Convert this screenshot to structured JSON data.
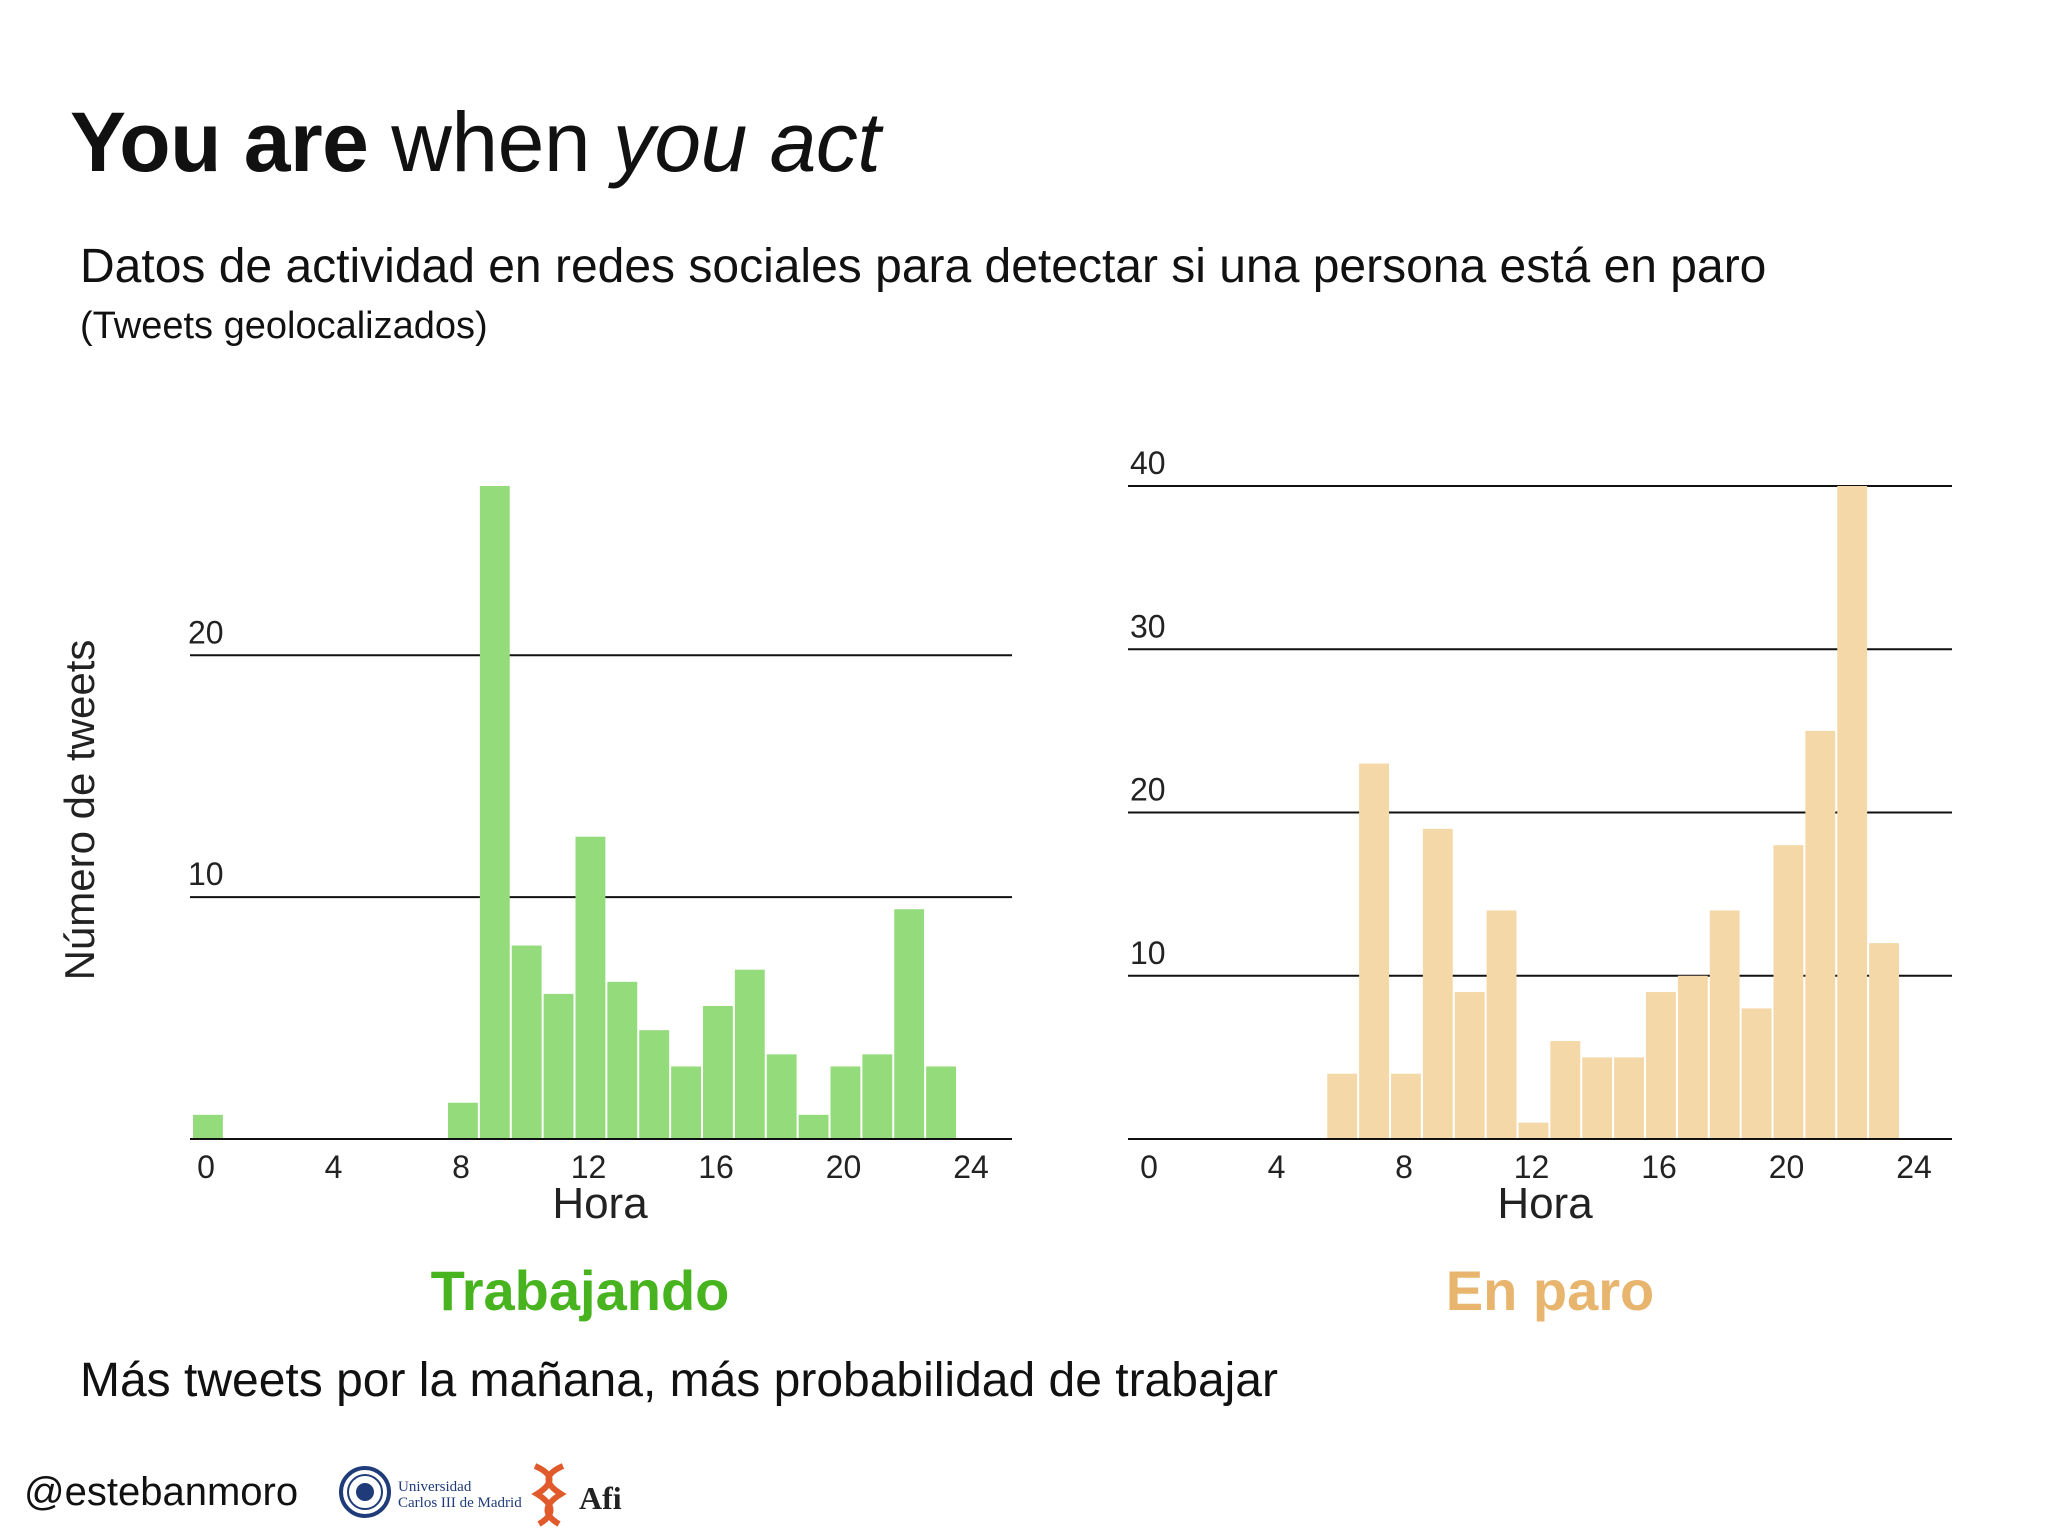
{
  "slide": {
    "title": {
      "bold": "You are",
      "regular": "when",
      "italic": "you act"
    },
    "subtitle": "Datos de actividad en redes sociales para detectar si una persona está en paro",
    "subnote": "(Tweets geolocalizados)",
    "conclusion": "Más tweets por la mañana, más probabilidad de trabajar",
    "footer": {
      "handle": "@estebanmoro"
    },
    "logos": {
      "uc3m": {
        "line1": "Universidad",
        "line2": "Carlos III de Madrid"
      },
      "afi": {
        "text": "Afi"
      }
    }
  },
  "chart_data": [
    {
      "type": "bar",
      "title": "Trabajando",
      "xlabel": "Hora",
      "ylabel": "Número de tweets",
      "x": [
        0,
        1,
        2,
        3,
        4,
        5,
        6,
        7,
        8,
        9,
        10,
        11,
        12,
        13,
        14,
        15,
        16,
        17,
        18,
        19,
        20,
        21,
        22,
        23
      ],
      "values": [
        1,
        0,
        0,
        0,
        0,
        0,
        0,
        0,
        1.5,
        27,
        8,
        6,
        12.5,
        6.5,
        4.5,
        3,
        5.5,
        7,
        3.5,
        1,
        3,
        3.5,
        9.5,
        3
      ],
      "xticks": [
        "0",
        "4",
        "8",
        "12",
        "16",
        "20",
        "24"
      ],
      "yticks": [
        "10",
        "20"
      ],
      "xlim": [
        0,
        25
      ],
      "ylim": [
        0,
        27
      ],
      "grid": true,
      "color": "#94db7c"
    },
    {
      "type": "bar",
      "title": "En paro",
      "xlabel": "Hora",
      "ylabel": "",
      "x": [
        0,
        1,
        2,
        3,
        4,
        5,
        6,
        7,
        8,
        9,
        10,
        11,
        12,
        13,
        14,
        15,
        16,
        17,
        18,
        19,
        20,
        21,
        22,
        23
      ],
      "values": [
        0,
        0,
        0,
        0,
        0,
        0,
        4,
        23,
        4,
        19,
        9,
        14,
        1,
        6,
        5,
        5,
        9,
        10,
        14,
        8,
        18,
        25,
        40,
        12
      ],
      "xticks": [
        "0",
        "4",
        "8",
        "12",
        "16",
        "20",
        "24"
      ],
      "yticks": [
        "10",
        "20",
        "30",
        "40"
      ],
      "xlim": [
        0,
        25
      ],
      "ylim": [
        0,
        40
      ],
      "grid": true,
      "color": "#f5d8a8"
    }
  ]
}
